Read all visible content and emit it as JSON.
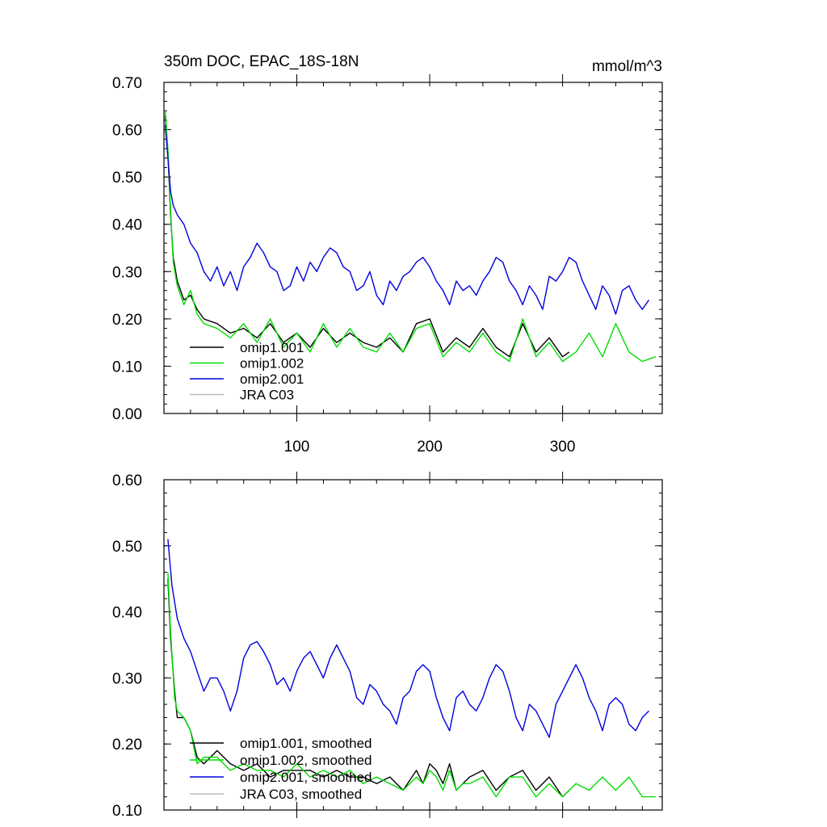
{
  "chart_data": [
    {
      "type": "line",
      "title": "350m DOC, EPAC_18S-18N",
      "units": "mmol/m^3",
      "xlabel": "",
      "ylabel": "",
      "xlim": [
        0,
        375
      ],
      "ylim": [
        0.0,
        0.7
      ],
      "xticks": [
        100,
        200,
        300
      ],
      "xtick_labels": [
        "100",
        "200",
        "300"
      ],
      "yticks": [
        0.0,
        0.1,
        0.2,
        0.3,
        0.4,
        0.5,
        0.6,
        0.7
      ],
      "ytick_labels": [
        "0.00",
        "0.10",
        "0.20",
        "0.30",
        "0.40",
        "0.50",
        "0.60",
        "0.70"
      ],
      "legend_position": "bottom-left",
      "series": [
        {
          "name": "omip1.001",
          "color": "#000000",
          "x": [
            1,
            3,
            5,
            7,
            10,
            15,
            20,
            25,
            30,
            40,
            50,
            60,
            70,
            80,
            90,
            100,
            110,
            120,
            130,
            140,
            150,
            160,
            170,
            180,
            190,
            200,
            210,
            220,
            230,
            240,
            250,
            260,
            270,
            280,
            290,
            300,
            305
          ],
          "values": [
            0.63,
            0.55,
            0.42,
            0.33,
            0.28,
            0.24,
            0.25,
            0.22,
            0.2,
            0.19,
            0.17,
            0.18,
            0.16,
            0.19,
            0.15,
            0.17,
            0.14,
            0.18,
            0.15,
            0.17,
            0.15,
            0.14,
            0.16,
            0.13,
            0.19,
            0.2,
            0.13,
            0.16,
            0.14,
            0.18,
            0.14,
            0.12,
            0.19,
            0.13,
            0.16,
            0.12,
            0.13
          ]
        },
        {
          "name": "omip1.002",
          "color": "#00dd00",
          "x": [
            1,
            3,
            5,
            7,
            10,
            15,
            20,
            25,
            30,
            40,
            50,
            60,
            70,
            80,
            90,
            100,
            110,
            120,
            130,
            140,
            150,
            160,
            170,
            180,
            190,
            200,
            210,
            220,
            230,
            240,
            250,
            260,
            270,
            280,
            290,
            300,
            310,
            320,
            330,
            340,
            350,
            360,
            370
          ],
          "values": [
            0.64,
            0.56,
            0.43,
            0.32,
            0.27,
            0.23,
            0.26,
            0.21,
            0.19,
            0.18,
            0.16,
            0.19,
            0.15,
            0.2,
            0.14,
            0.17,
            0.13,
            0.19,
            0.14,
            0.18,
            0.14,
            0.13,
            0.17,
            0.13,
            0.18,
            0.19,
            0.12,
            0.15,
            0.13,
            0.17,
            0.13,
            0.11,
            0.2,
            0.12,
            0.15,
            0.11,
            0.13,
            0.17,
            0.12,
            0.19,
            0.13,
            0.11,
            0.12
          ]
        },
        {
          "name": "omip2.001",
          "color": "#0000dd",
          "x": [
            1,
            3,
            5,
            7,
            10,
            15,
            20,
            25,
            30,
            35,
            40,
            45,
            50,
            55,
            60,
            65,
            70,
            75,
            80,
            85,
            90,
            95,
            100,
            105,
            110,
            115,
            120,
            125,
            130,
            135,
            140,
            145,
            150,
            155,
            160,
            165,
            170,
            175,
            180,
            185,
            190,
            195,
            200,
            205,
            210,
            215,
            220,
            225,
            230,
            235,
            240,
            245,
            250,
            255,
            260,
            265,
            270,
            275,
            280,
            285,
            290,
            295,
            300,
            305,
            310,
            315,
            320,
            325,
            330,
            335,
            340,
            345,
            350,
            355,
            360,
            365
          ],
          "values": [
            0.61,
            0.54,
            0.47,
            0.44,
            0.42,
            0.4,
            0.36,
            0.34,
            0.3,
            0.28,
            0.31,
            0.27,
            0.3,
            0.26,
            0.31,
            0.33,
            0.36,
            0.34,
            0.31,
            0.3,
            0.26,
            0.27,
            0.31,
            0.28,
            0.32,
            0.3,
            0.33,
            0.35,
            0.34,
            0.31,
            0.3,
            0.26,
            0.27,
            0.3,
            0.25,
            0.23,
            0.28,
            0.26,
            0.29,
            0.3,
            0.32,
            0.33,
            0.31,
            0.28,
            0.26,
            0.23,
            0.28,
            0.26,
            0.27,
            0.25,
            0.28,
            0.3,
            0.33,
            0.32,
            0.28,
            0.26,
            0.23,
            0.27,
            0.25,
            0.22,
            0.29,
            0.28,
            0.3,
            0.33,
            0.32,
            0.28,
            0.25,
            0.22,
            0.27,
            0.25,
            0.21,
            0.26,
            0.27,
            0.24,
            0.22,
            0.24
          ]
        },
        {
          "name": "JRA C03",
          "color": "#bbbbbb",
          "x": [],
          "values": []
        }
      ]
    },
    {
      "type": "line",
      "title": "",
      "xlabel": "",
      "ylabel": "",
      "xlim": [
        0,
        375
      ],
      "ylim": [
        0.1,
        0.6
      ],
      "xticks": [
        100,
        200,
        300
      ],
      "xtick_labels": [],
      "yticks": [
        0.1,
        0.2,
        0.3,
        0.4,
        0.5,
        0.6
      ],
      "ytick_labels": [
        "0.10",
        "0.20",
        "0.30",
        "0.40",
        "0.50",
        "0.60"
      ],
      "legend_position": "bottom-left",
      "series": [
        {
          "name": "omip1.001, smoothed",
          "color": "#000000",
          "x": [
            3,
            5,
            8,
            10,
            15,
            20,
            25,
            30,
            40,
            50,
            60,
            70,
            80,
            90,
            100,
            110,
            120,
            130,
            140,
            150,
            160,
            170,
            180,
            190,
            195,
            200,
            205,
            210,
            215,
            220,
            225,
            230,
            240,
            250,
            260,
            270,
            280,
            290,
            300,
            305
          ],
          "values": [
            0.45,
            0.36,
            0.28,
            0.24,
            0.24,
            0.22,
            0.18,
            0.17,
            0.19,
            0.17,
            0.16,
            0.17,
            0.15,
            0.16,
            0.16,
            0.16,
            0.15,
            0.16,
            0.15,
            0.15,
            0.14,
            0.15,
            0.13,
            0.16,
            0.14,
            0.17,
            0.16,
            0.14,
            0.17,
            0.13,
            0.14,
            0.15,
            0.16,
            0.13,
            0.15,
            0.16,
            0.13,
            0.15,
            0.12,
            0.13
          ]
        },
        {
          "name": "omip1.002, smoothed",
          "color": "#00dd00",
          "x": [
            3,
            5,
            8,
            10,
            15,
            20,
            25,
            30,
            40,
            50,
            60,
            70,
            80,
            90,
            100,
            110,
            120,
            130,
            140,
            150,
            160,
            170,
            180,
            190,
            195,
            200,
            205,
            210,
            215,
            220,
            225,
            230,
            240,
            250,
            260,
            270,
            280,
            290,
            300,
            310,
            320,
            330,
            340,
            350,
            360,
            370
          ],
          "values": [
            0.46,
            0.37,
            0.27,
            0.25,
            0.24,
            0.22,
            0.17,
            0.18,
            0.18,
            0.16,
            0.17,
            0.16,
            0.16,
            0.15,
            0.17,
            0.15,
            0.16,
            0.15,
            0.16,
            0.14,
            0.15,
            0.14,
            0.13,
            0.15,
            0.14,
            0.16,
            0.15,
            0.13,
            0.16,
            0.13,
            0.14,
            0.14,
            0.15,
            0.12,
            0.15,
            0.15,
            0.12,
            0.14,
            0.12,
            0.14,
            0.13,
            0.15,
            0.13,
            0.15,
            0.12,
            0.12
          ]
        },
        {
          "name": "omip2.001, smoothed",
          "color": "#0000dd",
          "x": [
            3,
            6,
            10,
            15,
            20,
            25,
            30,
            35,
            40,
            45,
            50,
            55,
            60,
            65,
            70,
            75,
            80,
            85,
            90,
            95,
            100,
            105,
            110,
            115,
            120,
            125,
            130,
            135,
            140,
            145,
            150,
            155,
            160,
            165,
            170,
            175,
            180,
            185,
            190,
            195,
            200,
            205,
            210,
            215,
            220,
            225,
            230,
            235,
            240,
            245,
            250,
            255,
            260,
            265,
            270,
            275,
            280,
            285,
            290,
            295,
            300,
            305,
            310,
            315,
            320,
            325,
            330,
            335,
            340,
            345,
            350,
            355,
            360,
            365
          ],
          "values": [
            0.51,
            0.44,
            0.39,
            0.36,
            0.34,
            0.31,
            0.28,
            0.3,
            0.3,
            0.28,
            0.25,
            0.28,
            0.33,
            0.35,
            0.355,
            0.34,
            0.32,
            0.29,
            0.3,
            0.28,
            0.31,
            0.33,
            0.34,
            0.32,
            0.3,
            0.33,
            0.35,
            0.33,
            0.31,
            0.27,
            0.26,
            0.29,
            0.28,
            0.26,
            0.25,
            0.23,
            0.27,
            0.28,
            0.31,
            0.32,
            0.31,
            0.27,
            0.24,
            0.22,
            0.27,
            0.28,
            0.26,
            0.25,
            0.27,
            0.3,
            0.32,
            0.31,
            0.28,
            0.24,
            0.22,
            0.26,
            0.25,
            0.23,
            0.21,
            0.26,
            0.28,
            0.3,
            0.32,
            0.3,
            0.27,
            0.25,
            0.22,
            0.26,
            0.27,
            0.26,
            0.23,
            0.22,
            0.24,
            0.25
          ]
        },
        {
          "name": "JRA C03, smoothed",
          "color": "#bbbbbb",
          "x": [],
          "values": []
        }
      ]
    }
  ]
}
